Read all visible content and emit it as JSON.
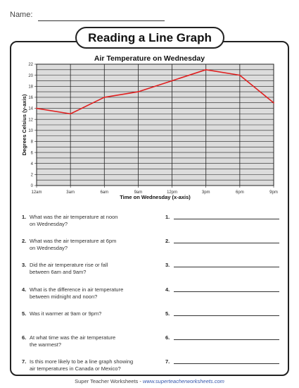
{
  "header": {
    "name_label": "Name:"
  },
  "title": "Reading a Line Graph",
  "chart_data": {
    "type": "line",
    "title": "Air Temperature on Wednesday",
    "xlabel": "Time on Wednesday (x-axis)",
    "ylabel": "Degrees Celsius (y-axis)",
    "categories": [
      "12am",
      "3am",
      "6am",
      "9am",
      "12pm",
      "3pm",
      "6pm",
      "9pm"
    ],
    "series": [
      {
        "values": [
          14,
          13,
          16,
          17,
          19,
          21,
          20,
          15
        ],
        "color": "#e02020"
      }
    ],
    "ylim": [
      0,
      22
    ],
    "yticks": [
      "0",
      "2",
      "4",
      "6",
      "8",
      "10",
      "12",
      "14",
      "16",
      "18",
      "20",
      "22"
    ],
    "grid": true
  },
  "questions": [
    {
      "num": "1.",
      "text": [
        "What was the air temperature at noon",
        "on Wednesday?"
      ],
      "answer_num": "1."
    },
    {
      "num": "2.",
      "text": [
        "What was the air temperature at 6pm",
        "on Wednesday?"
      ],
      "answer_num": "2."
    },
    {
      "num": "3.",
      "text": [
        "Did the air temperature rise or fall",
        "between 6am and 9am?"
      ],
      "answer_num": "3."
    },
    {
      "num": "4.",
      "text": [
        "What is the difference in air temperature",
        "between midnight and noon?"
      ],
      "answer_num": "4."
    },
    {
      "num": "5.",
      "text": [
        "Was it warmer at 9am or 9pm?"
      ],
      "answer_num": "5."
    },
    {
      "num": "6.",
      "text": [
        "At what time was the air temperature",
        "the warmest?"
      ],
      "answer_num": "6."
    },
    {
      "num": "7.",
      "text": [
        "Is this more likely to be a line graph showing",
        "air temperatures in Canada or Mexico?"
      ],
      "answer_num": "7."
    }
  ],
  "footer": {
    "brand": "Super Teacher Worksheets",
    "separator": " - ",
    "url": "www.superteacherworksheets.com"
  }
}
